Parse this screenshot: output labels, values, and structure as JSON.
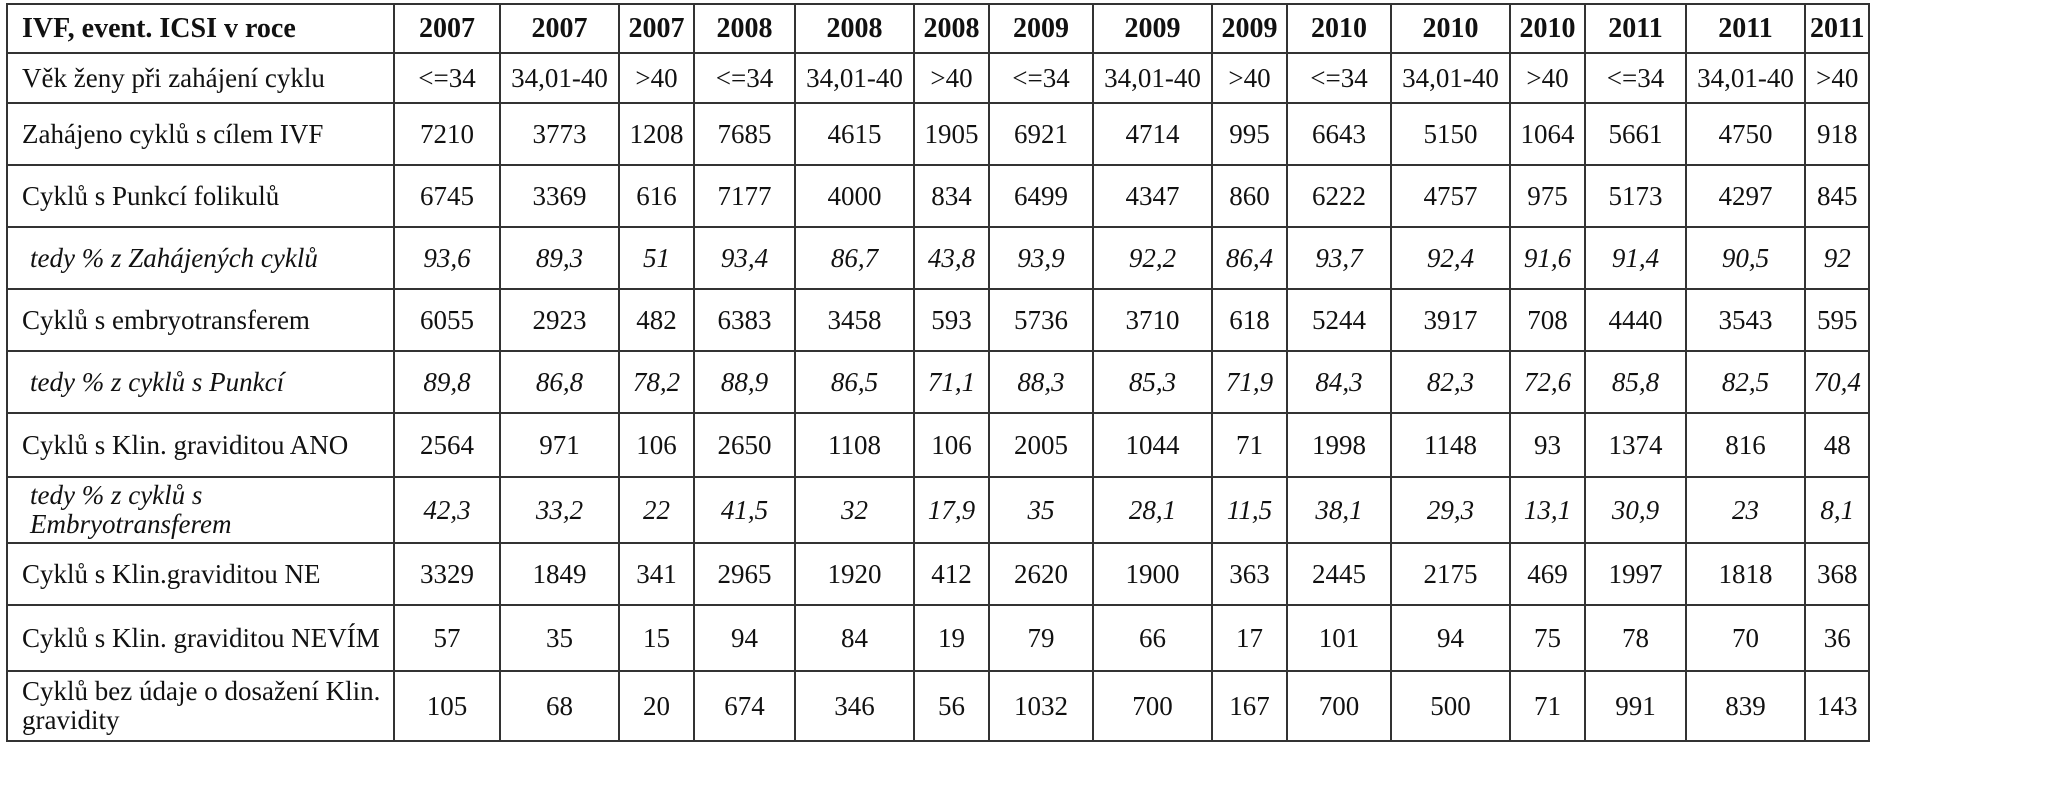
{
  "header": {
    "label": "IVF, event. ICSI v roce",
    "years": [
      "2007",
      "2007",
      "2007",
      "2008",
      "2008",
      "2008",
      "2009",
      "2009",
      "2009",
      "2010",
      "2010",
      "2010",
      "2011",
      "2011",
      "2011"
    ]
  },
  "rows": [
    {
      "label": "Věk ženy při zahájení cyklu",
      "italic": false,
      "values": [
        "<=34",
        "34,01-40",
        ">40",
        "<=34",
        "34,01-40",
        ">40",
        "<=34",
        "34,01-40",
        ">40",
        "<=34",
        "34,01-40",
        ">40",
        "<=34",
        "34,01-40",
        ">40"
      ]
    },
    {
      "label": "Zahájeno cyklů s cílem IVF",
      "italic": false,
      "values": [
        "7210",
        "3773",
        "1208",
        "7685",
        "4615",
        "1905",
        "6921",
        "4714",
        "995",
        "6643",
        "5150",
        "1064",
        "5661",
        "4750",
        "918"
      ]
    },
    {
      "label": "Cyklů s Punkcí folikulů",
      "italic": false,
      "values": [
        "6745",
        "3369",
        "616",
        "7177",
        "4000",
        "834",
        "6499",
        "4347",
        "860",
        "6222",
        "4757",
        "975",
        "5173",
        "4297",
        "845"
      ]
    },
    {
      "label": "tedy % z Zahájených cyklů",
      "italic": true,
      "values": [
        "93,6",
        "89,3",
        "51",
        "93,4",
        "86,7",
        "43,8",
        "93,9",
        "92,2",
        "86,4",
        "93,7",
        "92,4",
        "91,6",
        "91,4",
        "90,5",
        "92"
      ]
    },
    {
      "label": "Cyklů s embryotransferem",
      "italic": false,
      "values": [
        "6055",
        "2923",
        "482",
        "6383",
        "3458",
        "593",
        "5736",
        "3710",
        "618",
        "5244",
        "3917",
        "708",
        "4440",
        "3543",
        "595"
      ]
    },
    {
      "label": "tedy % z cyklů s Punkcí",
      "italic": true,
      "values": [
        "89,8",
        "86,8",
        "78,2",
        "88,9",
        "86,5",
        "71,1",
        "88,3",
        "85,3",
        "71,9",
        "84,3",
        "82,3",
        "72,6",
        "85,8",
        "82,5",
        "70,4"
      ]
    },
    {
      "label": "Cyklů s Klin. graviditou ANO",
      "italic": false,
      "values": [
        "2564",
        "971",
        "106",
        "2650",
        "1108",
        "106",
        "2005",
        "1044",
        "71",
        "1998",
        "1148",
        "93",
        "1374",
        "816",
        "48"
      ]
    },
    {
      "label": "tedy % z cyklů s Embryotransferem",
      "italic": true,
      "values": [
        "42,3",
        "33,2",
        "22",
        "41,5",
        "32",
        "17,9",
        "35",
        "28,1",
        "11,5",
        "38,1",
        "29,3",
        "13,1",
        "30,9",
        "23",
        "8,1"
      ]
    },
    {
      "label": "Cyklů s Klin.graviditou NE",
      "italic": false,
      "values": [
        "3329",
        "1849",
        "341",
        "2965",
        "1920",
        "412",
        "2620",
        "1900",
        "363",
        "2445",
        "2175",
        "469",
        "1997",
        "1818",
        "368"
      ]
    },
    {
      "label": "Cyklů s Klin. graviditou NEVÍM",
      "italic": false,
      "values": [
        "57",
        "35",
        "15",
        "94",
        "84",
        "19",
        "79",
        "66",
        "17",
        "101",
        "94",
        "75",
        "78",
        "70",
        "36"
      ]
    },
    {
      "label": "Cyklů bez údaje o dosažení Klin. gravidity",
      "italic": false,
      "values": [
        "105",
        "68",
        "20",
        "674",
        "346",
        "56",
        "1032",
        "700",
        "167",
        "700",
        "500",
        "71",
        "991",
        "839",
        "143"
      ]
    }
  ]
}
